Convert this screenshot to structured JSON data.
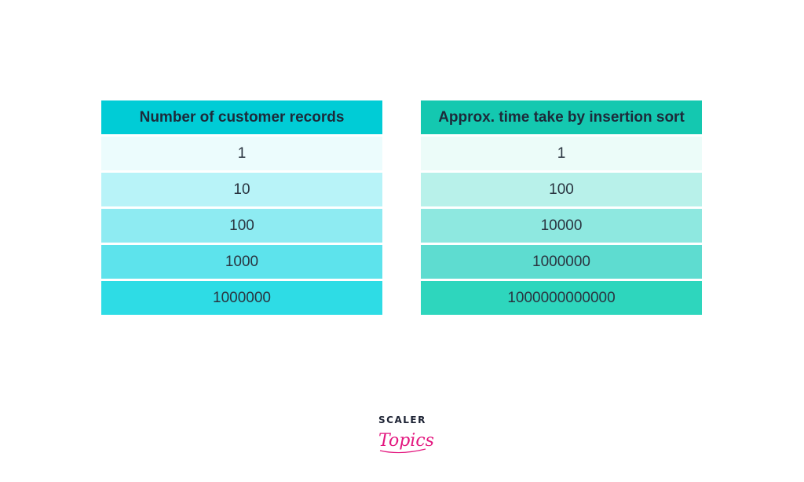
{
  "colors": {
    "left_header": "#00ccd6",
    "left_rows": [
      "#ecfcfd",
      "#b8f3f8",
      "#8eebf2",
      "#5de3ec",
      "#2edce5"
    ],
    "right_header": "#14c8b0",
    "right_rows": [
      "#ecfcf9",
      "#b8f1ea",
      "#8ee8e0",
      "#5edcd0",
      "#2ed6bd"
    ]
  },
  "left_table": {
    "header": "Number of customer records",
    "rows": [
      "1",
      "10",
      "100",
      "1000",
      "1000000"
    ]
  },
  "right_table": {
    "header": "Approx. time take by insertion sort",
    "rows": [
      "1",
      "100",
      "10000",
      "1000000",
      "1000000000000"
    ]
  },
  "logo": {
    "text": "SCALER",
    "script_text": "Topics",
    "accent_color": "#e3177f"
  }
}
